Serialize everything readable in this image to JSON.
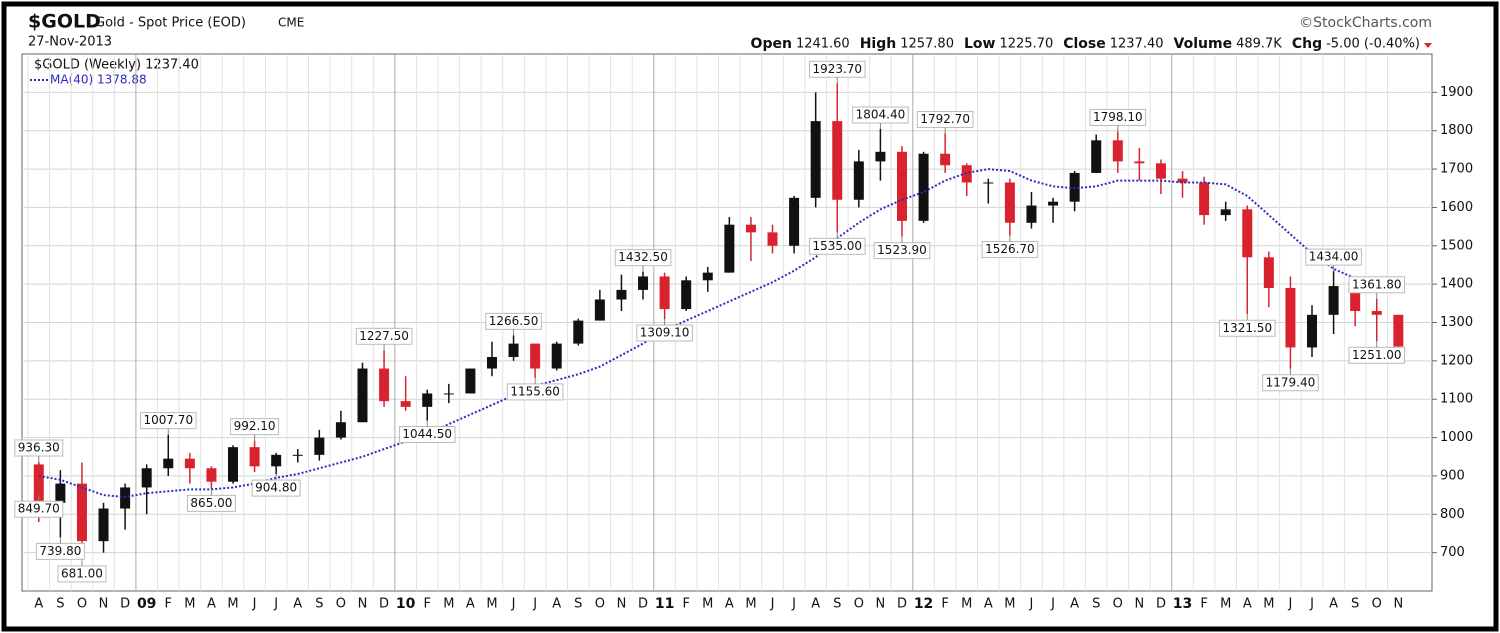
{
  "chart_data": {
    "type": "candlestick",
    "title": "$GOLD",
    "subtitle": "Gold - Spot Price (EOD)",
    "exchange": "CME",
    "date": "27-Nov-2013",
    "credit": "©StockCharts.com",
    "stats": [
      [
        "Open",
        "1241.60"
      ],
      [
        "High",
        "1257.80"
      ],
      [
        "Low",
        "1225.70"
      ],
      [
        "Close",
        "1237.40"
      ],
      [
        "Volume",
        "489.7K"
      ],
      [
        "Chg",
        "-5.00 (-0.40%)"
      ]
    ],
    "legend": [
      "$GOLD (Weekly) 1237.40",
      "MA(40) 1378.88"
    ],
    "categories": [
      "A",
      "S",
      "O",
      "N",
      "D",
      "09",
      "F",
      "M",
      "A",
      "M",
      "J",
      "J",
      "A",
      "S",
      "O",
      "N",
      "D",
      "10",
      "F",
      "M",
      "A",
      "M",
      "J",
      "J",
      "A",
      "S",
      "O",
      "N",
      "D",
      "11",
      "F",
      "M",
      "A",
      "M",
      "J",
      "J",
      "A",
      "S",
      "O",
      "N",
      "D",
      "12",
      "F",
      "M",
      "A",
      "M",
      "J",
      "J",
      "A",
      "S",
      "O",
      "N",
      "D",
      "13",
      "F",
      "M",
      "A",
      "M",
      "J",
      "J",
      "A",
      "S",
      "O",
      "N"
    ],
    "open": [
      930,
      830,
      880,
      730,
      815,
      870,
      920,
      945,
      920,
      885,
      975,
      925,
      955,
      955,
      1000,
      1040,
      1180,
      1095,
      1080,
      1115,
      1115,
      1180,
      1210,
      1245,
      1180,
      1245,
      1305,
      1360,
      1385,
      1420,
      1335,
      1410,
      1430,
      1555,
      1535,
      1500,
      1625,
      1825,
      1620,
      1720,
      1745,
      1565,
      1740,
      1710,
      1665,
      1665,
      1560,
      1605,
      1615,
      1690,
      1775,
      1720,
      1715,
      1675,
      1665,
      1580,
      1595,
      1470,
      1390,
      1235,
      1320,
      1395,
      1330,
      1320
    ],
    "high": [
      936.3,
      915,
      935,
      830,
      880,
      930,
      1007.7,
      960,
      925,
      980,
      992.1,
      960,
      970,
      1020,
      1070,
      1195,
      1227.5,
      1160,
      1125,
      1140,
      1180,
      1250,
      1266.5,
      1245,
      1250,
      1310,
      1385,
      1425,
      1432.5,
      1430,
      1420,
      1445,
      1575,
      1575,
      1555,
      1630,
      1900,
      1923.7,
      1750,
      1804.4,
      1760,
      1745,
      1792.7,
      1715,
      1675,
      1675,
      1640,
      1625,
      1695,
      1790,
      1798.1,
      1755,
      1725,
      1695,
      1680,
      1615,
      1605,
      1485,
      1420,
      1345,
      1434,
      1420,
      1361.8,
      1320
    ],
    "low": [
      780,
      739.8,
      681,
      700,
      760,
      800,
      900,
      880,
      865,
      880,
      910,
      904.8,
      935,
      940,
      995,
      1040,
      1080,
      1070,
      1044.5,
      1090,
      1115,
      1160,
      1200,
      1155.6,
      1175,
      1240,
      1305,
      1330,
      1360,
      1309.1,
      1330,
      1380,
      1430,
      1460,
      1480,
      1480,
      1600,
      1535,
      1600,
      1670,
      1523.9,
      1560,
      1690,
      1630,
      1610,
      1526.7,
      1545,
      1560,
      1590,
      1690,
      1690,
      1670,
      1635,
      1625,
      1555,
      1565,
      1321.5,
      1340,
      1179.4,
      1210,
      1270,
      1290,
      1251,
      1225.7
    ],
    "close": [
      830,
      880,
      730,
      815,
      870,
      920,
      945,
      920,
      885,
      975,
      925,
      955,
      955,
      1000,
      1040,
      1180,
      1095,
      1080,
      1115,
      1115,
      1180,
      1210,
      1245,
      1180,
      1245,
      1305,
      1360,
      1385,
      1420,
      1335,
      1410,
      1430,
      1555,
      1535,
      1500,
      1625,
      1825,
      1620,
      1720,
      1745,
      1565,
      1740,
      1710,
      1665,
      1665,
      1560,
      1605,
      1615,
      1690,
      1775,
      1720,
      1715,
      1675,
      1665,
      1580,
      1595,
      1470,
      1390,
      1235,
      1320,
      1395,
      1330,
      1320,
      1237.4
    ],
    "up_color": "#111111",
    "down_color": "#d8232f",
    "ma": {
      "name": "MA(40)",
      "color": "#2b2bc0",
      "values": [
        900,
        890,
        870,
        850,
        845,
        855,
        860,
        865,
        865,
        870,
        880,
        895,
        905,
        920,
        935,
        950,
        970,
        990,
        1010,
        1035,
        1060,
        1085,
        1110,
        1135,
        1150,
        1165,
        1185,
        1215,
        1245,
        1280,
        1305,
        1330,
        1355,
        1380,
        1405,
        1435,
        1470,
        1520,
        1560,
        1595,
        1620,
        1640,
        1670,
        1690,
        1700,
        1695,
        1670,
        1655,
        1650,
        1655,
        1670,
        1670,
        1670,
        1665,
        1665,
        1660,
        1630,
        1580,
        1530,
        1480,
        1440,
        1415,
        1395,
        1378.88
      ]
    },
    "annotations": [
      {
        "text": "849.70",
        "value": 849.7,
        "at": 0
      },
      {
        "text": "936.30",
        "value": 936.3,
        "at": 0
      },
      {
        "text": "739.80",
        "value": 739.8,
        "at": 1
      },
      {
        "text": "681.00",
        "value": 681,
        "at": 2
      },
      {
        "text": "1007.70",
        "value": 1007.7,
        "at": 6
      },
      {
        "text": "865.00",
        "value": 865,
        "at": 8
      },
      {
        "text": "992.10",
        "value": 992.1,
        "at": 10
      },
      {
        "text": "904.80",
        "value": 904.8,
        "at": 11
      },
      {
        "text": "1227.50",
        "value": 1227.5,
        "at": 16
      },
      {
        "text": "1044.50",
        "value": 1044.5,
        "at": 18
      },
      {
        "text": "1266.50",
        "value": 1266.5,
        "at": 22
      },
      {
        "text": "1155.60",
        "value": 1155.6,
        "at": 23
      },
      {
        "text": "1432.50",
        "value": 1432.5,
        "at": 28
      },
      {
        "text": "1309.10",
        "value": 1309.1,
        "at": 29
      },
      {
        "text": "1923.70",
        "value": 1923.7,
        "at": 37
      },
      {
        "text": "1535.00",
        "value": 1535,
        "at": 37
      },
      {
        "text": "1804.40",
        "value": 1804.4,
        "at": 39
      },
      {
        "text": "1523.90",
        "value": 1523.9,
        "at": 40
      },
      {
        "text": "1792.70",
        "value": 1792.7,
        "at": 42
      },
      {
        "text": "1526.70",
        "value": 1526.7,
        "at": 45
      },
      {
        "text": "1798.10",
        "value": 1798.1,
        "at": 50
      },
      {
        "text": "1321.50",
        "value": 1321.5,
        "at": 56
      },
      {
        "text": "1179.40",
        "value": 1179.4,
        "at": 58
      },
      {
        "text": "1434.00",
        "value": 1434,
        "at": 60
      },
      {
        "text": "1361.80",
        "value": 1361.8,
        "at": 62
      },
      {
        "text": "1251.00",
        "value": 1251,
        "at": 62
      }
    ],
    "ylim": [
      600,
      2000
    ],
    "yticks": [
      700,
      800,
      900,
      1000,
      1100,
      1200,
      1300,
      1400,
      1500,
      1600,
      1700,
      1800,
      1900
    ],
    "grid": true
  }
}
